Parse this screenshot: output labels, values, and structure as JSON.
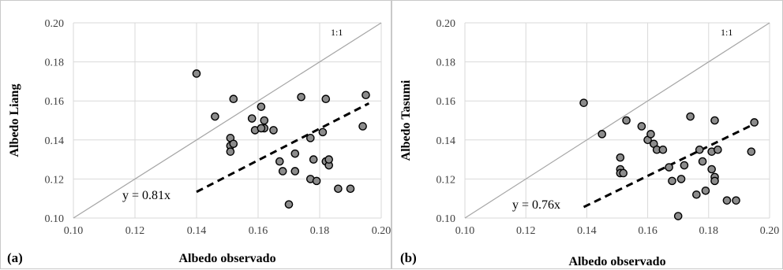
{
  "chart_data": [
    {
      "type": "scatter",
      "panel_label": "(a)",
      "xlabel": "Albedo observado",
      "ylabel": "Albedo Liang",
      "xlim": [
        0.1,
        0.2
      ],
      "ylim": [
        0.1,
        0.2
      ],
      "xticks": [
        "0.10",
        "0.12",
        "0.14",
        "0.16",
        "0.18",
        "0.20"
      ],
      "yticks": [
        "0.10",
        "0.12",
        "0.14",
        "0.16",
        "0.18",
        "0.20"
      ],
      "grid": true,
      "identity_label": "1:1",
      "fit_label": "y = 0.81x",
      "fit_slope": 0.81,
      "fit_x_range": [
        0.14,
        0.196
      ],
      "x": [
        0.14,
        0.146,
        0.151,
        0.151,
        0.152,
        0.151,
        0.152,
        0.158,
        0.159,
        0.161,
        0.162,
        0.162,
        0.161,
        0.165,
        0.167,
        0.168,
        0.17,
        0.172,
        0.172,
        0.174,
        0.177,
        0.177,
        0.178,
        0.179,
        0.181,
        0.182,
        0.182,
        0.183,
        0.183,
        0.186,
        0.19,
        0.194,
        0.195
      ],
      "y": [
        0.174,
        0.152,
        0.141,
        0.137,
        0.138,
        0.134,
        0.161,
        0.151,
        0.145,
        0.157,
        0.15,
        0.146,
        0.146,
        0.145,
        0.129,
        0.124,
        0.107,
        0.124,
        0.133,
        0.162,
        0.141,
        0.12,
        0.13,
        0.119,
        0.144,
        0.129,
        0.161,
        0.127,
        0.13,
        0.115,
        0.115,
        0.147,
        0.163
      ]
    },
    {
      "type": "scatter",
      "panel_label": "(b)",
      "xlabel": "Albedo observado",
      "ylabel": "Albedo Tasumi",
      "xlim": [
        0.1,
        0.2
      ],
      "ylim": [
        0.1,
        0.2
      ],
      "xticks": [
        "0.10",
        "0.12",
        "0.14",
        "0.16",
        "0.18",
        "0.20"
      ],
      "yticks": [
        "0.10",
        "0.12",
        "0.14",
        "0.16",
        "0.18",
        "0.20"
      ],
      "grid": true,
      "identity_label": "1:1",
      "fit_label": "y = 0.76x",
      "fit_slope": 0.76,
      "fit_x_range": [
        0.139,
        0.195
      ],
      "x": [
        0.139,
        0.145,
        0.151,
        0.151,
        0.151,
        0.152,
        0.153,
        0.158,
        0.16,
        0.161,
        0.162,
        0.163,
        0.165,
        0.167,
        0.168,
        0.17,
        0.171,
        0.172,
        0.174,
        0.176,
        0.177,
        0.178,
        0.179,
        0.181,
        0.181,
        0.182,
        0.182,
        0.182,
        0.183,
        0.186,
        0.189,
        0.194,
        0.195
      ],
      "y": [
        0.159,
        0.143,
        0.131,
        0.125,
        0.123,
        0.123,
        0.15,
        0.147,
        0.14,
        0.143,
        0.138,
        0.135,
        0.135,
        0.126,
        0.119,
        0.101,
        0.12,
        0.127,
        0.152,
        0.112,
        0.135,
        0.129,
        0.114,
        0.134,
        0.125,
        0.15,
        0.121,
        0.119,
        0.135,
        0.109,
        0.109,
        0.134,
        0.149
      ]
    }
  ],
  "style": {
    "point_fill": "#8c8c8c",
    "point_stroke": "#000000",
    "grid_color": "#d9d9d9",
    "identity_color": "#a6a6a6",
    "fit_color": "#000000"
  }
}
